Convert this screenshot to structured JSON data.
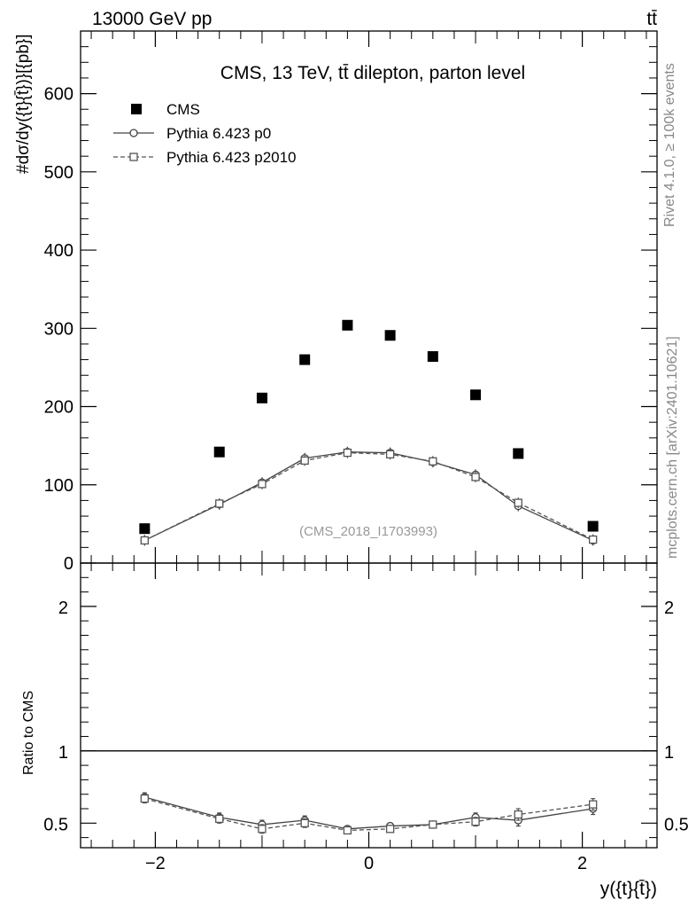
{
  "header": {
    "left": "13000 GeV pp",
    "right": "tt̄"
  },
  "side_labels": {
    "rivet": "Rivet 4.1.0, ≥ 100k events",
    "source": "mcplots.cern.ch [arXiv:2401.10621]"
  },
  "chart_data": [
    {
      "type": "scatter",
      "panel": "main",
      "title": "CMS, 13 TeV, tt̄ dilepton, parton level",
      "watermark": "(CMS_2018_I1703993)",
      "ylabel": "#dσ/dy({t}{t̄})}[{pb}]",
      "xlabel": "",
      "xlim": [
        -2.7,
        2.7
      ],
      "ylim": [
        0,
        680
      ],
      "yticks": [
        "0",
        "100",
        "200",
        "300",
        "400",
        "500",
        "600"
      ],
      "legend_position": "top-left",
      "x": [
        -2.1,
        -1.4,
        -1.0,
        -0.6,
        -0.2,
        0.2,
        0.6,
        1.0,
        1.4,
        2.1
      ],
      "series": [
        {
          "name": "CMS",
          "style": "data",
          "color": "#000000",
          "values": [
            44,
            142,
            211,
            260,
            304,
            291,
            264,
            215,
            140,
            47
          ]
        },
        {
          "name": "Pythia 6.423 p0",
          "style": "solid-circle",
          "color": "#444444",
          "values": [
            29,
            75,
            103,
            134,
            142,
            141,
            129,
            113,
            73,
            29
          ]
        },
        {
          "name": "Pythia 6.423 p2010",
          "style": "dashed-square",
          "color": "#555555",
          "values": [
            29,
            76,
            101,
            131,
            141,
            139,
            130,
            110,
            77,
            30
          ]
        }
      ]
    },
    {
      "type": "scatter",
      "panel": "ratio",
      "ylabel": "Ratio to CMS",
      "xlabel": "y({t}{t̄})",
      "xlim": [
        -2.7,
        2.7
      ],
      "ylim": [
        0.33,
        2.3
      ],
      "yticks": [
        "0.5",
        "1",
        "2"
      ],
      "xticks": [
        "−2",
        "0",
        "2"
      ],
      "reference_line": 1,
      "x": [
        -2.1,
        -1.4,
        -1.0,
        -0.6,
        -0.2,
        0.2,
        0.6,
        1.0,
        1.4,
        2.1
      ],
      "series": [
        {
          "name": "Pythia 6.423 p0",
          "style": "solid-circle",
          "color": "#444444",
          "values": [
            0.68,
            0.54,
            0.49,
            0.52,
            0.46,
            0.48,
            0.49,
            0.54,
            0.52,
            0.6
          ],
          "errors": [
            0.03,
            0.03,
            0.03,
            0.03,
            0.02,
            0.02,
            0.02,
            0.03,
            0.04,
            0.04
          ]
        },
        {
          "name": "Pythia 6.423 p2010",
          "style": "dashed-square",
          "color": "#555555",
          "values": [
            0.67,
            0.53,
            0.46,
            0.5,
            0.45,
            0.46,
            0.49,
            0.51,
            0.56,
            0.63
          ],
          "errors": [
            0.03,
            0.03,
            0.03,
            0.03,
            0.02,
            0.02,
            0.02,
            0.03,
            0.04,
            0.04
          ]
        }
      ]
    }
  ]
}
